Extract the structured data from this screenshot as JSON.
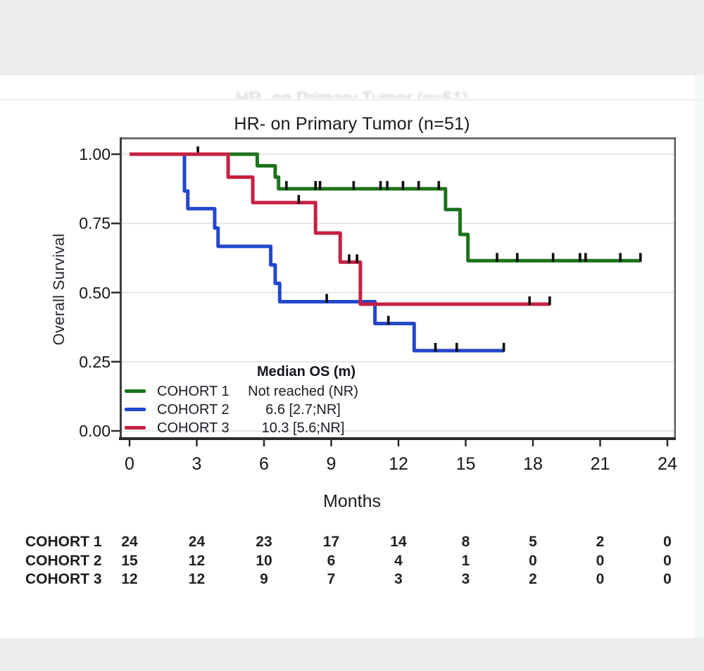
{
  "page": {
    "top_band_color": "#ededee",
    "bottom_band_color": "#ededee",
    "card_color": "#ffffff"
  },
  "ghost_text": "HR- on Primary Tumor (n=51)",
  "chart_data": {
    "type": "line",
    "variant": "kaplan-meier-step",
    "title": "HR- on Primary Tumor (n=51)",
    "xlabel": "Months",
    "ylabel": "Overall Survival",
    "xlim": [
      0,
      24
    ],
    "ylim": [
      0.0,
      1.0
    ],
    "grid": "horizontal",
    "x_ticks": [
      0,
      3,
      6,
      9,
      12,
      15,
      18,
      21,
      24
    ],
    "y_ticks": [
      {
        "label": "1.00",
        "value": 1.0
      },
      {
        "label": "0.75",
        "value": 0.75
      },
      {
        "label": "0.50",
        "value": 0.5
      },
      {
        "label": "0.25",
        "value": 0.25
      },
      {
        "label": "0.00",
        "value": 0.0
      }
    ],
    "legend": {
      "header": "Median OS (m)",
      "position": "inside bottom-left"
    },
    "series": [
      {
        "name": "COHORT 1",
        "color": "#1d721d",
        "median_os": "Not reached (NR)",
        "steps": [
          [
            0,
            1.0
          ],
          [
            5.7,
            0.958
          ],
          [
            6.5,
            0.917
          ],
          [
            6.65,
            0.875
          ],
          [
            14.1,
            0.8
          ],
          [
            14.75,
            0.71
          ],
          [
            15.1,
            0.615
          ]
        ],
        "end_month": 22.8,
        "censor_marks": [
          [
            3.05,
            1.0
          ],
          [
            7.0,
            0.875
          ],
          [
            8.3,
            0.875
          ],
          [
            8.5,
            0.875
          ],
          [
            10.0,
            0.875
          ],
          [
            11.2,
            0.875
          ],
          [
            11.5,
            0.875
          ],
          [
            12.2,
            0.875
          ],
          [
            12.9,
            0.875
          ],
          [
            13.8,
            0.875
          ],
          [
            16.4,
            0.615
          ],
          [
            17.3,
            0.615
          ],
          [
            18.9,
            0.615
          ],
          [
            20.1,
            0.615
          ],
          [
            20.35,
            0.615
          ],
          [
            21.9,
            0.615
          ],
          [
            22.8,
            0.615
          ]
        ]
      },
      {
        "name": "COHORT 2",
        "color": "#2347cd",
        "median_os": "6.6 [2.7;NR]",
        "steps": [
          [
            0,
            1.0
          ],
          [
            2.45,
            0.867
          ],
          [
            2.6,
            0.803
          ],
          [
            3.8,
            0.733
          ],
          [
            3.95,
            0.667
          ],
          [
            6.3,
            0.6
          ],
          [
            6.5,
            0.533
          ],
          [
            6.7,
            0.467
          ],
          [
            10.95,
            0.388
          ],
          [
            12.7,
            0.29
          ]
        ],
        "end_month": 16.7,
        "censor_marks": [
          [
            8.8,
            0.467
          ],
          [
            11.55,
            0.388
          ],
          [
            13.65,
            0.29
          ],
          [
            14.6,
            0.29
          ],
          [
            16.7,
            0.29
          ]
        ]
      },
      {
        "name": "COHORT 3",
        "color": "#c52042",
        "median_os": "10.3 [5.6;NR]",
        "steps": [
          [
            0,
            1.0
          ],
          [
            4.4,
            0.917
          ],
          [
            5.5,
            0.825
          ],
          [
            8.3,
            0.715
          ],
          [
            9.4,
            0.61
          ],
          [
            10.3,
            0.458
          ]
        ],
        "end_month": 18.75,
        "censor_marks": [
          [
            7.55,
            0.825
          ],
          [
            9.8,
            0.61
          ],
          [
            10.15,
            0.61
          ],
          [
            17.85,
            0.458
          ],
          [
            18.75,
            0.458
          ]
        ]
      }
    ],
    "risk_table": {
      "x_values": [
        0,
        3,
        6,
        9,
        12,
        15,
        18,
        21,
        24
      ],
      "rows": [
        {
          "label": "COHORT 1",
          "counts": [
            24,
            24,
            23,
            17,
            14,
            8,
            5,
            2,
            0
          ]
        },
        {
          "label": "COHORT 2",
          "counts": [
            15,
            12,
            10,
            6,
            4,
            1,
            0,
            0,
            0
          ]
        },
        {
          "label": "COHORT 3",
          "counts": [
            12,
            12,
            9,
            7,
            3,
            3,
            2,
            0,
            0
          ]
        }
      ]
    }
  }
}
